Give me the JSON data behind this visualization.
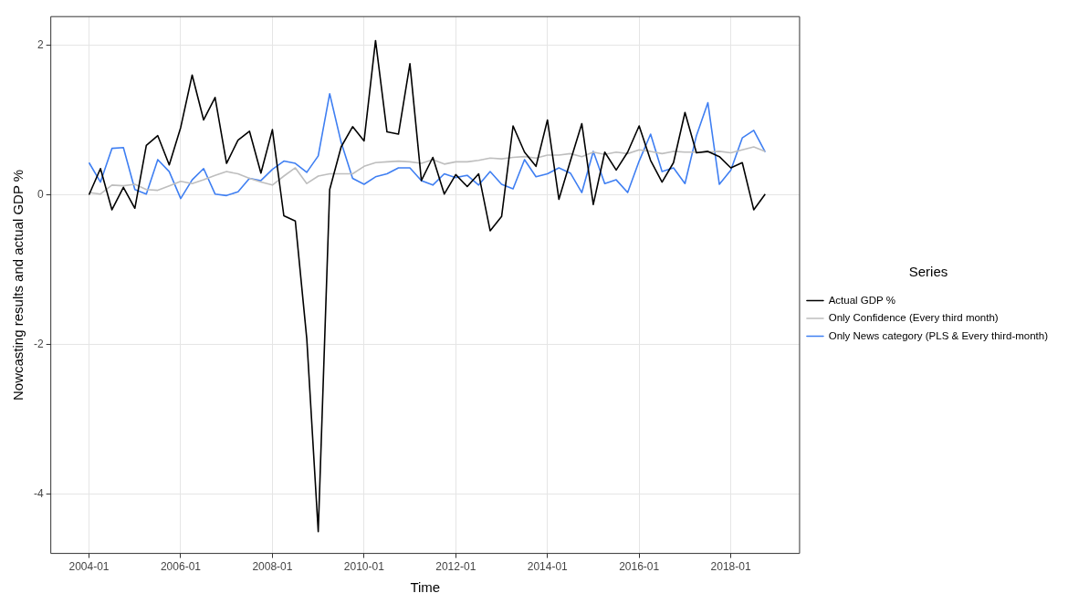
{
  "chart_data": {
    "type": "line",
    "xlabel": "Time",
    "ylabel": "Nowcasting results and actual GDP %",
    "legend_title": "Series",
    "legend": "right",
    "grid": true,
    "marker": "none",
    "line_style": "solid",
    "x": [
      "2004-01",
      "2004-04",
      "2004-07",
      "2004-10",
      "2005-01",
      "2005-04",
      "2005-07",
      "2005-10",
      "2006-01",
      "2006-04",
      "2006-07",
      "2006-10",
      "2007-01",
      "2007-04",
      "2007-07",
      "2007-10",
      "2008-01",
      "2008-04",
      "2008-07",
      "2008-10",
      "2009-01",
      "2009-04",
      "2009-07",
      "2009-10",
      "2010-01",
      "2010-04",
      "2010-07",
      "2010-10",
      "2011-01",
      "2011-04",
      "2011-07",
      "2011-10",
      "2012-01",
      "2012-04",
      "2012-07",
      "2012-10",
      "2013-01",
      "2013-04",
      "2013-07",
      "2013-10",
      "2014-01",
      "2014-04",
      "2014-07",
      "2014-10",
      "2015-01",
      "2015-04",
      "2015-07",
      "2015-10",
      "2016-01",
      "2016-04",
      "2016-07",
      "2016-10",
      "2017-01",
      "2017-04",
      "2017-07",
      "2017-10",
      "2018-01",
      "2018-04",
      "2018-07",
      "2018-10"
    ],
    "xlim": [
      "2003-03",
      "2019-07"
    ],
    "xticks": [
      "2004-01",
      "2006-01",
      "2008-01",
      "2010-01",
      "2012-01",
      "2014-01",
      "2016-01",
      "2018-01"
    ],
    "ylim": [
      -4.79,
      2.38
    ],
    "yticks": [
      -4,
      -2,
      0,
      2
    ],
    "series": [
      {
        "name": "Actual GDP %",
        "color": "#000000",
        "values": [
          0.0,
          0.35,
          -0.2,
          0.1,
          -0.18,
          0.66,
          0.79,
          0.4,
          0.9,
          1.6,
          1.0,
          1.3,
          0.42,
          0.73,
          0.85,
          0.29,
          0.87,
          -0.28,
          -0.35,
          -1.92,
          -4.5,
          0.07,
          0.64,
          0.91,
          0.72,
          2.06,
          0.84,
          0.81,
          1.75,
          0.19,
          0.5,
          0.01,
          0.27,
          0.11,
          0.28,
          -0.48,
          -0.29,
          0.92,
          0.57,
          0.38,
          1.0,
          -0.06,
          0.45,
          0.95,
          -0.13,
          0.57,
          0.33,
          0.57,
          0.92,
          0.46,
          0.17,
          0.43,
          1.1,
          0.56,
          0.58,
          0.51,
          0.36,
          0.43,
          -0.2,
          0.01
        ]
      },
      {
        "name": "Only Confidence (Every third month)",
        "color": "#bebebe",
        "values": [
          0.03,
          0.01,
          0.13,
          0.12,
          0.14,
          0.07,
          0.06,
          0.12,
          0.18,
          0.15,
          0.2,
          0.26,
          0.31,
          0.28,
          0.22,
          0.17,
          0.13,
          0.25,
          0.36,
          0.15,
          0.25,
          0.28,
          0.28,
          0.28,
          0.38,
          0.43,
          0.44,
          0.45,
          0.44,
          0.42,
          0.47,
          0.41,
          0.44,
          0.44,
          0.46,
          0.49,
          0.48,
          0.5,
          0.51,
          0.49,
          0.53,
          0.53,
          0.55,
          0.51,
          0.57,
          0.54,
          0.57,
          0.55,
          0.6,
          0.58,
          0.55,
          0.58,
          0.57,
          0.57,
          0.57,
          0.58,
          0.56,
          0.6,
          0.64,
          0.58
        ]
      },
      {
        "name": "Only News category (PLS & Every third-month)",
        "color": "#3f7ff2",
        "values": [
          0.43,
          0.17,
          0.62,
          0.63,
          0.07,
          0.01,
          0.47,
          0.31,
          -0.05,
          0.2,
          0.35,
          0.01,
          -0.01,
          0.04,
          0.22,
          0.19,
          0.34,
          0.45,
          0.42,
          0.3,
          0.52,
          1.35,
          0.7,
          0.22,
          0.14,
          0.24,
          0.28,
          0.36,
          0.36,
          0.19,
          0.13,
          0.28,
          0.23,
          0.26,
          0.13,
          0.31,
          0.14,
          0.08,
          0.47,
          0.24,
          0.28,
          0.36,
          0.29,
          0.03,
          0.58,
          0.15,
          0.2,
          0.03,
          0.45,
          0.81,
          0.31,
          0.36,
          0.15,
          0.79,
          1.23,
          0.14,
          0.33,
          0.76,
          0.86,
          0.57
        ]
      }
    ]
  }
}
